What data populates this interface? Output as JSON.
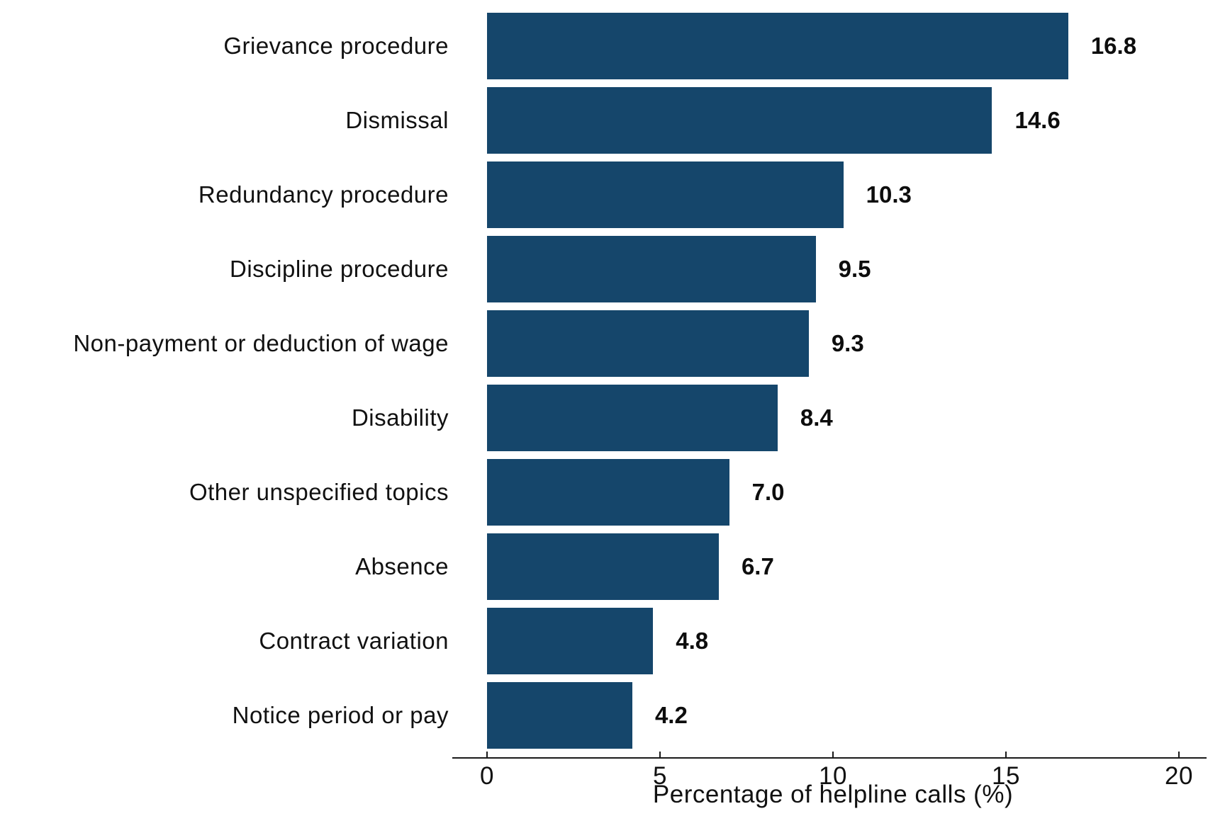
{
  "chart_data": {
    "type": "bar",
    "orientation": "horizontal",
    "title": "",
    "xlabel": "Percentage of helpline calls (%)",
    "ylabel": "",
    "xlim": [
      0,
      20
    ],
    "xticks": [
      0,
      5,
      10,
      15,
      20
    ],
    "xtick_labels": [
      "0",
      "5",
      "10",
      "15",
      "20"
    ],
    "grid": false,
    "legend": false,
    "categories": [
      "Grievance procedure",
      "Dismissal",
      "Redundancy procedure",
      "Discipline procedure",
      "Non-payment or deduction of wage",
      "Disability",
      "Other unspecified topics",
      "Absence",
      "Contract variation",
      "Notice period or pay"
    ],
    "values": [
      16.8,
      14.6,
      10.3,
      9.5,
      9.3,
      8.4,
      7.0,
      6.7,
      4.8,
      4.2
    ],
    "value_labels": [
      "16.8",
      "14.6",
      "10.3",
      "9.5",
      "9.3",
      "8.4",
      "7.0",
      "6.7",
      "4.8",
      "4.2"
    ],
    "colors": {
      "bar": "#15466B",
      "category_text": "#111111",
      "value_text": "#0d0d0d",
      "axis": "#1a1a1a",
      "background": "#ffffff"
    }
  }
}
